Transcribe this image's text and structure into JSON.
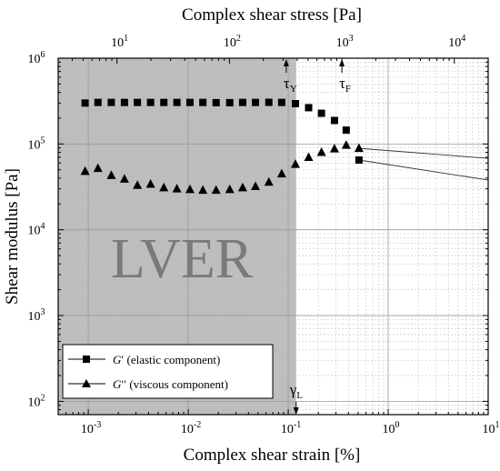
{
  "chart_data": {
    "type": "scatter",
    "title": "",
    "xlabel": "Complex shear strain [%]",
    "x2label": "Complex shear stress [Pa]",
    "ylabel": "Shear modulus [Pa]",
    "xscale": "log",
    "x2scale": "log",
    "yscale": "log",
    "xlim": [
      0.0005,
      10
    ],
    "x2lim": [
      3,
      20000
    ],
    "ylim": [
      70,
      1000000
    ],
    "grid": true,
    "legend_position": "bottom-left",
    "lver_region": {
      "x_from": 0.0005,
      "x_to": 0.12,
      "label": "LVER",
      "color": "#bdbdbd"
    },
    "x_tick_labels": [
      {
        "base": "10",
        "exp": "-3",
        "value": 0.001
      },
      {
        "base": "10",
        "exp": "-2",
        "value": 0.01
      },
      {
        "base": "10",
        "exp": "-1",
        "value": 0.1
      },
      {
        "base": "10",
        "exp": "0",
        "value": 1
      },
      {
        "base": "10",
        "exp": "1",
        "value": 10
      }
    ],
    "x2_tick_labels": [
      {
        "base": "10",
        "exp": "1",
        "value": 10
      },
      {
        "base": "10",
        "exp": "2",
        "value": 100
      },
      {
        "base": "10",
        "exp": "3",
        "value": 1000
      },
      {
        "base": "10",
        "exp": "4",
        "value": 10000
      }
    ],
    "y_tick_labels": [
      {
        "base": "10",
        "exp": "2",
        "value": 100
      },
      {
        "base": "10",
        "exp": "3",
        "value": 1000
      },
      {
        "base": "10",
        "exp": "4",
        "value": 10000
      },
      {
        "base": "10",
        "exp": "5",
        "value": 100000
      },
      {
        "base": "10",
        "exp": "6",
        "value": 1000000
      }
    ],
    "annotations": [
      {
        "symbol": "τ",
        "sub": "Y",
        "axis": "top",
        "value": 320
      },
      {
        "symbol": "τ",
        "sub": "F",
        "axis": "top",
        "value": 1000
      },
      {
        "symbol": "γ",
        "sub": "L",
        "axis": "bottom",
        "value": 0.12
      }
    ],
    "series": [
      {
        "name": "G′ (elastic component)",
        "marker": "square",
        "x": [
          0.00093,
          0.00125,
          0.0017,
          0.0023,
          0.0031,
          0.0042,
          0.0057,
          0.0077,
          0.0104,
          0.014,
          0.019,
          0.026,
          0.035,
          0.047,
          0.064,
          0.086,
          0.118,
          0.16,
          0.215,
          0.29,
          0.38,
          0.51
        ],
        "y": [
          300000,
          305000,
          305000,
          305000,
          305000,
          305000,
          305000,
          305000,
          305000,
          305000,
          303000,
          303000,
          305000,
          305000,
          306000,
          305000,
          295000,
          265000,
          228000,
          188000,
          145000,
          65000
        ],
        "tail_end": [
          10,
          38000
        ]
      },
      {
        "name": "G′′ (viscous component)",
        "marker": "triangle",
        "x": [
          0.00093,
          0.00125,
          0.0017,
          0.0023,
          0.0031,
          0.0042,
          0.0057,
          0.0077,
          0.0104,
          0.014,
          0.019,
          0.026,
          0.035,
          0.047,
          0.064,
          0.086,
          0.118,
          0.16,
          0.215,
          0.29,
          0.38,
          0.51
        ],
        "y": [
          48000,
          52000,
          43000,
          39000,
          33000,
          34000,
          31000,
          30000,
          29500,
          29000,
          29000,
          29500,
          31000,
          32000,
          36000,
          45000,
          58000,
          70000,
          80000,
          88000,
          97000,
          89000
        ],
        "tail_end": [
          10,
          68000
        ]
      }
    ]
  },
  "legend": {
    "items": [
      {
        "symbol": "G",
        "primes": "′",
        "desc": " (elastic component)"
      },
      {
        "symbol": "G",
        "primes": "′′",
        "desc": " (viscous component)"
      }
    ]
  }
}
